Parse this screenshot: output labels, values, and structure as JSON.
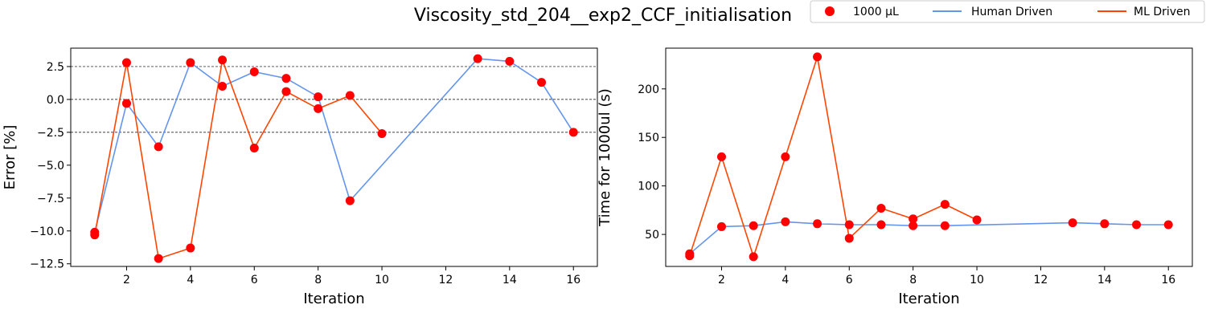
{
  "figure": {
    "title": "Viscosity_std_204__exp2_CCF_initialisation"
  },
  "legend": {
    "placement": "top-right",
    "entries": [
      {
        "label": "1000 µL",
        "kind": "marker",
        "color": "#ff0000"
      },
      {
        "label": "Human Driven",
        "kind": "line",
        "color": "#6495ed"
      },
      {
        "label": "ML Driven",
        "kind": "line",
        "color": "#ff4500"
      }
    ]
  },
  "colors": {
    "marker": "#ff0000",
    "human": "#6495ed",
    "ml": "#ff4500"
  },
  "chart_data": [
    {
      "type": "line",
      "xlabel": "Iteration",
      "ylabel": "Error [%]",
      "xlim": [
        0.25,
        16.75
      ],
      "ylim": [
        -12.7,
        3.9
      ],
      "xticks": [
        2,
        4,
        6,
        8,
        10,
        12,
        14,
        16
      ],
      "xtick_labels": [
        "2",
        "4",
        "6",
        "8",
        "10",
        "12",
        "14",
        "16"
      ],
      "yticks": [
        2.5,
        0.0,
        -2.5,
        -5.0,
        -7.5,
        -10.0,
        -12.5
      ],
      "ytick_labels": [
        "2.5",
        "0.0",
        "−2.5",
        "−5.0",
        "−7.5",
        "−10.0",
        "−12.5"
      ],
      "hlines": [
        2.5,
        0.0,
        -2.5
      ],
      "grid": false,
      "series": [
        {
          "name": "Human Driven",
          "x": [
            1,
            2,
            3,
            4,
            5,
            6,
            7,
            8,
            9,
            13,
            14,
            15,
            16
          ],
          "y": [
            -10.1,
            -0.3,
            -3.6,
            2.8,
            1.0,
            2.1,
            1.6,
            0.2,
            -7.7,
            3.1,
            2.9,
            1.3,
            -2.5
          ]
        },
        {
          "name": "ML Driven",
          "x": [
            1,
            2,
            3,
            4,
            5,
            6,
            7,
            8,
            9,
            10
          ],
          "y": [
            -10.3,
            2.8,
            -12.1,
            -11.3,
            3.0,
            -3.7,
            0.6,
            -0.7,
            0.3,
            -2.6
          ]
        }
      ]
    },
    {
      "type": "line",
      "xlabel": "Iteration",
      "ylabel": "Time for 1000ul (s)",
      "xlim": [
        0.25,
        16.75
      ],
      "ylim": [
        17,
        242
      ],
      "xticks": [
        2,
        4,
        6,
        8,
        10,
        12,
        14,
        16
      ],
      "xtick_labels": [
        "2",
        "4",
        "6",
        "8",
        "10",
        "12",
        "14",
        "16"
      ],
      "yticks": [
        50,
        100,
        150,
        200
      ],
      "ytick_labels": [
        "50",
        "100",
        "150",
        "200"
      ],
      "hlines": [],
      "grid": false,
      "series": [
        {
          "name": "Human Driven",
          "x": [
            1,
            2,
            3,
            4,
            5,
            6,
            7,
            8,
            9,
            13,
            14,
            15,
            16
          ],
          "y": [
            30,
            58,
            59,
            63,
            61,
            60,
            60,
            59,
            59,
            62,
            61,
            60,
            60
          ]
        },
        {
          "name": "ML Driven",
          "x": [
            1,
            2,
            3,
            4,
            5,
            6,
            7,
            8,
            9,
            10
          ],
          "y": [
            28,
            130,
            27,
            130,
            233,
            46,
            77,
            66,
            81,
            65
          ]
        }
      ]
    }
  ]
}
